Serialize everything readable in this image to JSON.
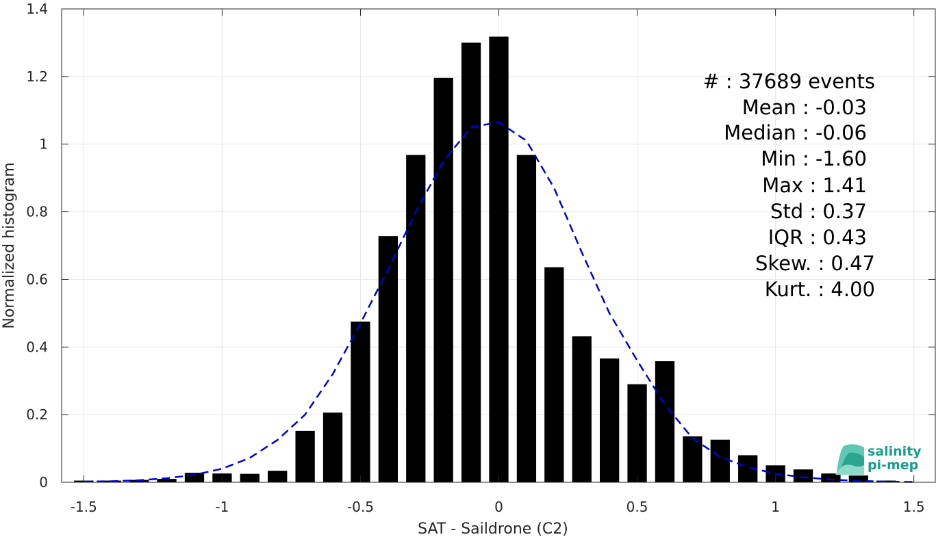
{
  "chart_data": {
    "type": "bar",
    "xlabel": "SAT - Saildrone (C2)",
    "ylabel": "Normalized histogram",
    "xlim": [
      -1.58,
      1.58
    ],
    "ylim": [
      0,
      1.4
    ],
    "grid": true,
    "x_ticks": [
      -1.5,
      -1,
      -0.5,
      0,
      0.5,
      1,
      1.5
    ],
    "x_tick_labels": [
      "-1.5",
      "-1",
      "-0.5",
      "0",
      "0.5",
      "1",
      "1.5"
    ],
    "y_ticks": [
      0,
      0.2,
      0.4,
      0.6,
      0.8,
      1,
      1.2,
      1.4
    ],
    "y_tick_labels": [
      "0",
      "0.2",
      "0.4",
      "0.6",
      "0.8",
      "1",
      "1.2",
      "1.4"
    ],
    "bar_width": 0.07,
    "bar_color": "#000000",
    "x": [
      -1.5,
      -1.4,
      -1.3,
      -1.2,
      -1.1,
      -1.0,
      -0.9,
      -0.8,
      -0.7,
      -0.6,
      -0.5,
      -0.4,
      -0.3,
      -0.2,
      -0.1,
      0.0,
      0.1,
      0.2,
      0.3,
      0.4,
      0.5,
      0.6,
      0.7,
      0.8,
      0.9,
      1.0,
      1.1,
      1.2,
      1.3,
      1.4
    ],
    "values": [
      0.005,
      0.005,
      0.007,
      0.01,
      0.028,
      0.026,
      0.025,
      0.034,
      0.152,
      0.206,
      0.475,
      0.728,
      0.968,
      1.196,
      1.3,
      1.318,
      0.968,
      0.636,
      0.432,
      0.366,
      0.29,
      0.358,
      0.136,
      0.126,
      0.08,
      0.05,
      0.038,
      0.026,
      0.02,
      0.005
    ],
    "fit_curve": {
      "color": "#0000dd",
      "style": "dashed",
      "x": [
        -1.5,
        -1.4,
        -1.3,
        -1.2,
        -1.1,
        -1.0,
        -0.9,
        -0.8,
        -0.7,
        -0.6,
        -0.5,
        -0.4,
        -0.3,
        -0.2,
        -0.1,
        0.0,
        0.1,
        0.2,
        0.3,
        0.4,
        0.5,
        0.6,
        0.7,
        0.8,
        0.9,
        1.0,
        1.1,
        1.2,
        1.3,
        1.4,
        1.5
      ],
      "y": [
        0.002,
        0.003,
        0.006,
        0.012,
        0.022,
        0.04,
        0.072,
        0.125,
        0.2,
        0.32,
        0.47,
        0.63,
        0.8,
        0.95,
        1.05,
        1.065,
        1.01,
        0.87,
        0.68,
        0.5,
        0.36,
        0.23,
        0.13,
        0.075,
        0.045,
        0.025,
        0.015,
        0.008,
        0.004,
        0.002,
        0.001
      ]
    },
    "stats": {
      "events": "#  : 37689 events",
      "mean": "Mean : -0.03",
      "median": "Median : -0.06",
      "min": "Min : -1.60",
      "max": "Max : 1.41",
      "std": "Std : 0.37",
      "iqr": "IQR : 0.43",
      "skew": "Skew. : 0.47",
      "kurt": "Kurt. : 4.00"
    }
  },
  "logo": {
    "line1": "salinity",
    "line2": "pi-mep",
    "color": "#1a9e8a"
  }
}
